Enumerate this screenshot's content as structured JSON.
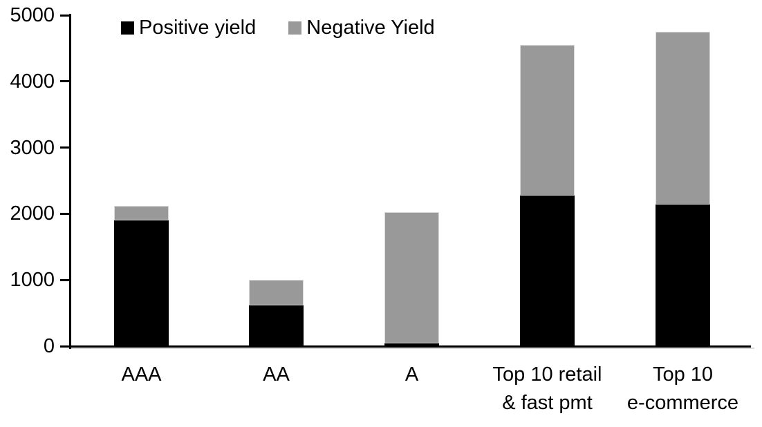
{
  "chart_data": {
    "type": "bar",
    "stacked": true,
    "title": "",
    "xlabel": "",
    "ylabel": "",
    "categories": [
      "AAA",
      "AA",
      "A",
      "Top 10 retail\n& fast pmt",
      "Top 10\ne-commerce"
    ],
    "series": [
      {
        "name": "Positive yield",
        "color": "#000000",
        "values": [
          1900,
          620,
          40,
          2280,
          2140
        ]
      },
      {
        "name": "Negative Yield",
        "color": "#999999",
        "values": [
          220,
          380,
          1990,
          2270,
          2610
        ]
      }
    ],
    "totals": [
      2120,
      1000,
      2030,
      4550,
      4750
    ],
    "ylim": [
      0,
      5000
    ],
    "yticks": [
      0,
      1000,
      2000,
      3000,
      4000,
      5000
    ],
    "ytick_labels": [
      "0",
      "1000",
      "2000",
      "3000",
      "4000",
      "5000"
    ],
    "grid": false,
    "legend_position": "top-left"
  },
  "colors": {
    "axis": "#000000",
    "background": "#ffffff",
    "positive_series": "#000000",
    "negative_series": "#999999",
    "bar_highlight_border": "#d9d9d9"
  }
}
